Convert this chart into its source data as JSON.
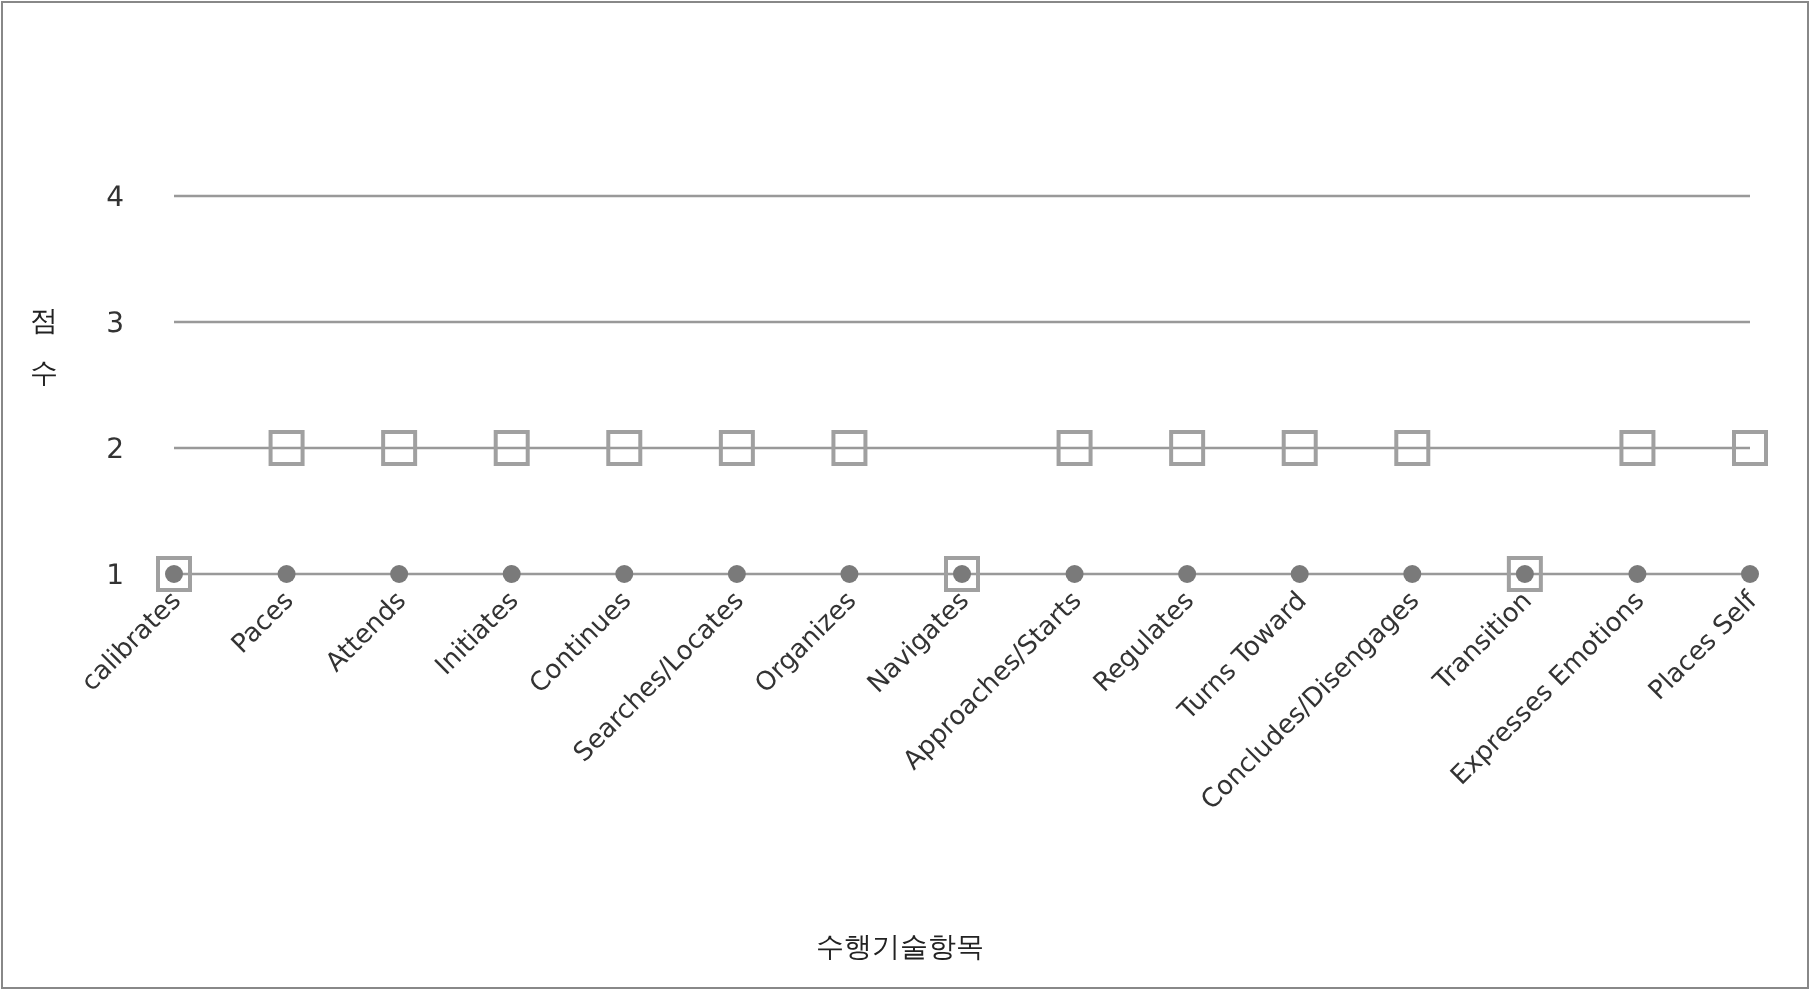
{
  "chart_data": {
    "type": "scatter",
    "xlabel": "수행기술항목",
    "ylabel": "점수",
    "categories": [
      "calibrates",
      "Paces",
      "Attends",
      "Initiates",
      "Continues",
      "Searches/Locates",
      "Organizes",
      "Navigates",
      "Approaches/Starts",
      "Regulates",
      "Turns Toward",
      "Concludes/Disengages",
      "Transition",
      "Expresses Emotions",
      "Places Self"
    ],
    "series": [
      {
        "color": "#a0a0a0",
        "marker": "square",
        "values": [
          1,
          2,
          2,
          2,
          2,
          2,
          2,
          1,
          2,
          2,
          2,
          2,
          1,
          2,
          2
        ]
      },
      {
        "color": "#7a7a7a",
        "marker": "circle",
        "values": [
          1,
          1,
          1,
          1,
          1,
          1,
          1,
          1,
          1,
          1,
          1,
          1,
          1,
          1,
          1
        ]
      }
    ],
    "ylim": [
      1,
      4
    ],
    "yticks": [
      1,
      2,
      3,
      4
    ],
    "grid": "y"
  }
}
